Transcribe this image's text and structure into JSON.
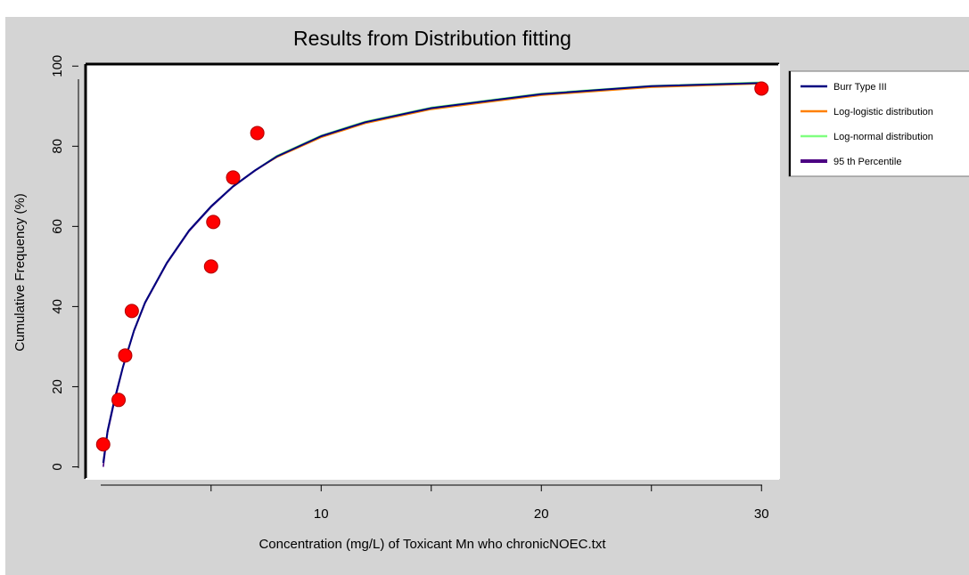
{
  "chart_data": {
    "type": "line",
    "title": "Results from Distribution fitting",
    "xlabel": "Concentration (mg/L) of Toxicant Mn who chronicNOEC.txt",
    "ylabel": "Cumulative Frequency (%)",
    "xlim": [
      -0.7,
      30.8
    ],
    "ylim": [
      -3,
      100.5
    ],
    "x_ticks": [
      10,
      20,
      30
    ],
    "x_minor_ticks": [
      5,
      15,
      25
    ],
    "y_ticks": [
      0,
      20,
      40,
      60,
      80,
      100
    ],
    "grid": false,
    "legend_position": "right",
    "points": {
      "x": [
        0.1,
        0.8,
        1.1,
        1.4,
        5.0,
        5.1,
        6.0,
        7.1,
        30.0
      ],
      "y": [
        5.6,
        16.7,
        27.8,
        38.9,
        50.0,
        61.1,
        72.2,
        83.3,
        94.4
      ]
    },
    "series": [
      {
        "name": "Burr Type III",
        "color": "#000080",
        "x": [
          0.1,
          0.3,
          0.6,
          1.0,
          1.5,
          2.0,
          3.0,
          4.0,
          5.0,
          6.0,
          7.0,
          8.0,
          10.0,
          12.0,
          15.0,
          20.0,
          25.0,
          30.0
        ],
        "y": [
          1.0,
          9.0,
          16.5,
          25.0,
          34.0,
          41.0,
          51.0,
          59.0,
          65.0,
          70.0,
          74.0,
          77.5,
          82.5,
          86.0,
          89.5,
          93.0,
          95.0,
          95.8
        ]
      },
      {
        "name": "Log-logistic distribution",
        "color": "#ff8000",
        "x": [
          0.1,
          0.3,
          0.6,
          1.0,
          1.5,
          2.0,
          3.0,
          4.0,
          5.0,
          6.0,
          7.0,
          8.0,
          10.0,
          12.0,
          15.0,
          20.0,
          25.0,
          30.0
        ],
        "y": [
          1.0,
          9.0,
          16.5,
          25.0,
          34.0,
          41.0,
          51.0,
          59.0,
          65.0,
          70.0,
          74.0,
          77.3,
          82.2,
          85.7,
          89.2,
          92.7,
          94.7,
          95.6
        ]
      },
      {
        "name": "Log-normal distribution",
        "color": "#80ff80",
        "x": [
          0.1,
          0.3,
          0.6,
          1.0,
          1.5,
          2.0,
          3.0,
          4.0,
          5.0,
          6.0,
          7.0,
          8.0,
          10.0,
          12.0,
          15.0,
          20.0,
          25.0,
          30.0
        ],
        "y": [
          1.0,
          9.0,
          16.5,
          25.0,
          34.0,
          41.0,
          51.0,
          59.0,
          65.0,
          70.0,
          74.0,
          77.7,
          82.7,
          86.2,
          89.7,
          93.2,
          95.1,
          96.0
        ]
      },
      {
        "name": "95 th Percentile",
        "color": "#4b0082",
        "x": [
          0.1,
          0.3,
          0.6,
          1.0,
          1.5,
          2.0,
          3.0,
          4.0,
          5.0,
          6.0,
          7.0,
          8.0,
          10.0,
          12.0,
          15.0,
          20.0,
          25.0,
          30.0
        ],
        "y": [
          0.0,
          8.5,
          16.0,
          24.8,
          33.8,
          40.8,
          50.8,
          58.8,
          64.8,
          69.9,
          73.9,
          77.4,
          82.4,
          85.9,
          89.4,
          92.9,
          94.9,
          95.7
        ]
      }
    ],
    "colors": {
      "points": "#ff0000",
      "background": "#d4d4d4",
      "plot_area": "#ffffff"
    }
  }
}
